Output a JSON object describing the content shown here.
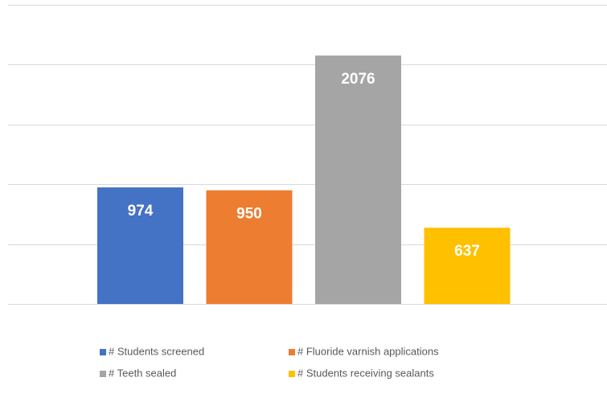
{
  "chart_data": {
    "type": "bar",
    "series": [
      {
        "name": "# Students screened",
        "color": "#4472c4",
        "values": [
          974
        ]
      },
      {
        "name": "# Fluoride varnish applications",
        "color": "#ed7d31",
        "values": [
          950
        ]
      },
      {
        "name": "# Teeth sealed",
        "color": "#a5a5a5",
        "values": [
          2076
        ]
      },
      {
        "name": "# Students receiving sealants",
        "color": "#ffc000",
        "values": [
          637
        ]
      }
    ],
    "ylim": [
      0,
      2500
    ],
    "yticks": [
      0,
      500,
      1000,
      1500,
      2000,
      2500
    ],
    "grid": true,
    "legend": "bottom"
  }
}
